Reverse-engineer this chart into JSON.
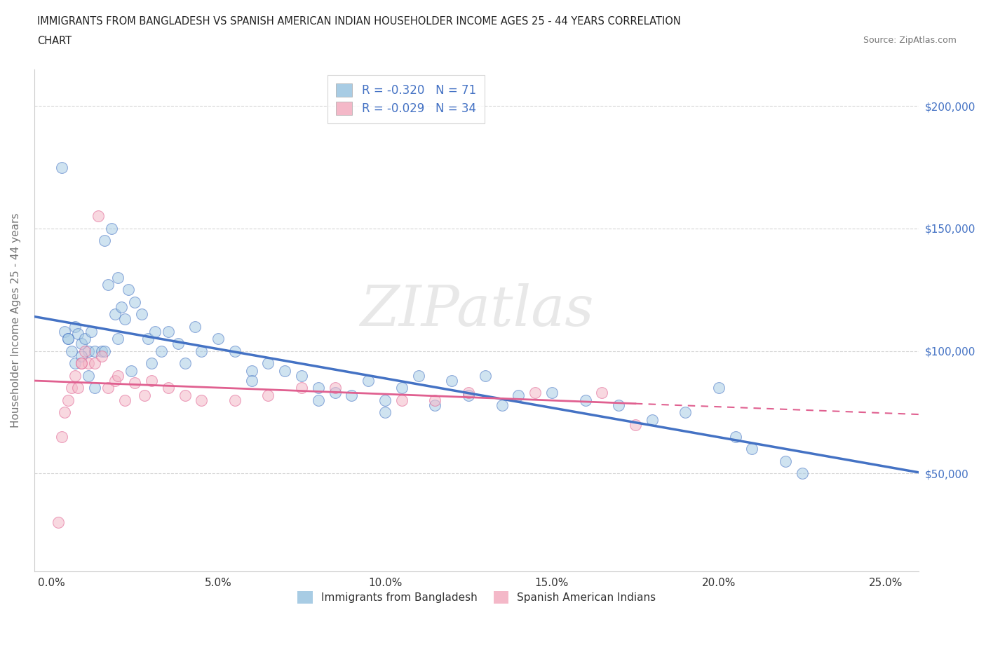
{
  "title_line1": "IMMIGRANTS FROM BANGLADESH VS SPANISH AMERICAN INDIAN HOUSEHOLDER INCOME AGES 25 - 44 YEARS CORRELATION",
  "title_line2": "CHART",
  "source_text": "Source: ZipAtlas.com",
  "ylabel": "Householder Income Ages 25 - 44 years",
  "xlabel_ticks": [
    "0.0%",
    "5.0%",
    "10.0%",
    "15.0%",
    "20.0%",
    "25.0%"
  ],
  "xlabel_vals": [
    0.0,
    5.0,
    10.0,
    15.0,
    20.0,
    25.0
  ],
  "ytick_labels": [
    "$50,000",
    "$100,000",
    "$150,000",
    "$200,000"
  ],
  "ytick_vals": [
    50000,
    100000,
    150000,
    200000
  ],
  "xlim": [
    -0.5,
    26.0
  ],
  "ylim": [
    10000,
    215000
  ],
  "legend_label1": "Immigrants from Bangladesh",
  "legend_label2": "Spanish American Indians",
  "R1": -0.32,
  "N1": 71,
  "R2": -0.029,
  "N2": 34,
  "color_blue": "#a8cce4",
  "color_pink": "#f4b8c8",
  "color_blue_line": "#4472c4",
  "color_pink_line": "#e06090",
  "color_rn_text": "#4472c4",
  "watermark": "ZIPatlas",
  "blue_scatter_x": [
    0.3,
    0.4,
    0.5,
    0.6,
    0.7,
    0.8,
    0.9,
    1.0,
    1.1,
    1.2,
    1.3,
    1.5,
    1.6,
    1.7,
    1.8,
    1.9,
    2.0,
    2.1,
    2.2,
    2.3,
    2.5,
    2.7,
    2.9,
    3.1,
    3.3,
    3.5,
    3.8,
    4.0,
    4.3,
    5.0,
    5.5,
    6.0,
    6.5,
    7.0,
    7.5,
    8.0,
    8.5,
    9.0,
    9.5,
    10.0,
    10.5,
    11.0,
    11.5,
    12.0,
    12.5,
    13.0,
    13.5,
    14.0,
    15.0,
    16.0,
    17.0,
    18.0,
    19.0,
    20.0,
    21.0,
    22.0,
    0.5,
    0.7,
    0.9,
    1.1,
    1.3,
    1.6,
    2.0,
    2.4,
    3.0,
    4.5,
    6.0,
    8.0,
    10.0,
    20.5,
    22.5
  ],
  "blue_scatter_y": [
    175000,
    108000,
    105000,
    100000,
    110000,
    107000,
    103000,
    105000,
    100000,
    108000,
    100000,
    100000,
    145000,
    127000,
    150000,
    115000,
    130000,
    118000,
    113000,
    125000,
    120000,
    115000,
    105000,
    108000,
    100000,
    108000,
    103000,
    95000,
    110000,
    105000,
    100000,
    92000,
    95000,
    92000,
    90000,
    85000,
    83000,
    82000,
    88000,
    80000,
    85000,
    90000,
    78000,
    88000,
    82000,
    90000,
    78000,
    82000,
    83000,
    80000,
    78000,
    72000,
    75000,
    85000,
    60000,
    55000,
    105000,
    95000,
    98000,
    90000,
    85000,
    100000,
    105000,
    92000,
    95000,
    100000,
    88000,
    80000,
    75000,
    65000,
    50000
  ],
  "pink_scatter_x": [
    0.2,
    0.3,
    0.5,
    0.6,
    0.7,
    0.8,
    0.9,
    1.0,
    1.1,
    1.3,
    1.5,
    1.7,
    1.9,
    2.0,
    2.2,
    2.5,
    2.8,
    3.0,
    3.5,
    4.0,
    4.5,
    5.5,
    6.5,
    7.5,
    8.5,
    10.5,
    11.5,
    12.5,
    14.5,
    16.5,
    17.5,
    0.4,
    0.9,
    1.4
  ],
  "pink_scatter_y": [
    30000,
    65000,
    80000,
    85000,
    90000,
    85000,
    95000,
    100000,
    95000,
    95000,
    98000,
    85000,
    88000,
    90000,
    80000,
    87000,
    82000,
    88000,
    85000,
    82000,
    80000,
    80000,
    82000,
    85000,
    85000,
    80000,
    80000,
    83000,
    83000,
    83000,
    70000,
    75000,
    95000,
    155000
  ],
  "blue_line_x0": 0.0,
  "blue_line_y0": 110000,
  "blue_line_x1": 25.0,
  "blue_line_y1": 50000,
  "pink_line_x0": 0.0,
  "pink_line_y0": 87000,
  "pink_line_x1": 17.5,
  "pink_line_y1": 82000,
  "pink_dashed_x0": 17.5,
  "pink_dashed_y0": 82000,
  "pink_dashed_x1": 25.0,
  "pink_dashed_y1": 80000
}
